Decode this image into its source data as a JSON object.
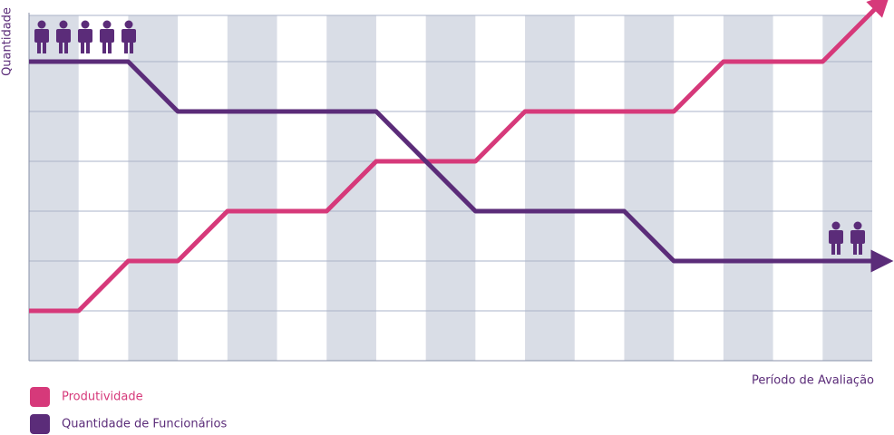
{
  "chart_data": {
    "type": "line",
    "y_label": "Quantidade",
    "x_label": "Período de Avaliação",
    "xlim": [
      0,
      17
    ],
    "ylim": [
      0,
      7
    ],
    "series": [
      {
        "name": "Produtividade",
        "color": "#d6397a",
        "x": [
          0,
          1,
          2,
          3,
          4,
          6,
          7,
          9,
          10,
          13,
          14,
          16,
          17.2
        ],
        "values": [
          1,
          1,
          2,
          2,
          3,
          3,
          4,
          4,
          5,
          5,
          6,
          6,
          7.2
        ]
      },
      {
        "name": "Quantidade de Funcionários",
        "color": "#5b2c79",
        "x": [
          0,
          2,
          3,
          7,
          9,
          12,
          13,
          17.2
        ],
        "values": [
          6,
          6,
          5,
          5,
          3,
          3,
          2,
          2
        ]
      }
    ]
  }
}
